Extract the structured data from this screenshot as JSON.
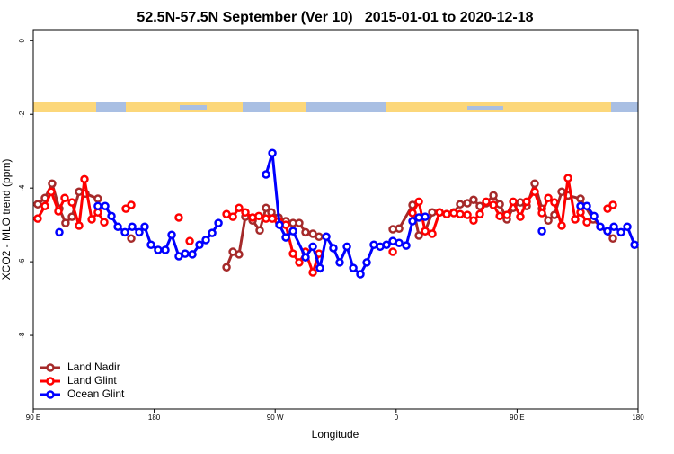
{
  "chart_data": {
    "type": "line",
    "title": "52.5N-57.5N September (Ver 10)   2015-01-01 to 2020-12-18",
    "x_label": "Longitude",
    "y_label": "XCO2 - MLO trend (ppm)",
    "xlim": [
      90,
      540
    ],
    "ylim": [
      -10,
      0.3
    ],
    "xticks": [
      {
        "value": 90,
        "label": "90 E"
      },
      180,
      {
        "value": 270,
        "label": "90 W"
      },
      {
        "value": 360,
        "label": "0"
      },
      {
        "value": 450,
        "label": "90 E"
      },
      {
        "value": 540,
        "label": "180"
      }
    ],
    "yticks": [
      0,
      -2,
      -4,
      -6,
      -8
    ],
    "legend": "bottom-left",
    "series": [
      {
        "name": "Land Nadir",
        "color": "#a52a2a",
        "x": [
          93.3,
          98.7,
          104,
          109.4,
          114,
          118.8,
          124.1,
          128.8,
          138.1,
          150,
          162.9,
          200,
          233.8,
          238.5,
          243.1,
          247.8,
          253.2,
          258.5,
          263.2,
          267.2,
          272.6,
          277.9,
          283.3,
          287.9,
          292.6,
          298,
          302.6,
          330,
          357.5,
          362.2,
          372.2,
          376.9,
          381.6,
          386.9,
          392.3,
          397.6,
          402.9,
          407.6,
          413,
          417.6,
          422.3,
          427,
          432.4,
          437.1,
          442.4,
          447.1,
          452.4,
          457.1,
          463.1,
          468.5,
          473.2,
          477.8,
          483.2,
          487.9,
          497.2,
          506.6,
          521.3
        ],
        "values": [
          -4.44,
          -4.27,
          -3.88,
          -4.56,
          -4.95,
          -4.78,
          -4.1,
          -4.15,
          -4.29,
          null,
          -5.37,
          null,
          -6.15,
          -5.73,
          -5.8,
          -4.78,
          -4.88,
          -5.15,
          -4.54,
          -4.66,
          -4.8,
          -4.9,
          -4.95,
          -4.95,
          -5.2,
          -5.24,
          -5.32,
          null,
          -5.12,
          -5.1,
          -4.46,
          -5.29,
          -5.17,
          -4.66,
          -4.66,
          -4.71,
          -4.66,
          -4.44,
          -4.41,
          -4.32,
          -4.49,
          -4.41,
          -4.2,
          -4.44,
          -4.85,
          -4.54,
          -4.39,
          -4.49,
          -3.88,
          -4.56,
          -4.88,
          -4.73,
          -4.1,
          -4.2,
          -4.29,
          -4.85,
          -5.37
        ]
      },
      {
        "name": "Land Glint",
        "color": "#ff0000",
        "x": [
          93.3,
          98.7,
          103.4,
          108.7,
          113.4,
          118.8,
          124.1,
          128.1,
          133.5,
          138.1,
          142.8,
          150,
          158.9,
          162.9,
          180,
          198.3,
          202,
          206.4,
          220,
          233.8,
          238.5,
          243.1,
          247.8,
          253.2,
          257.8,
          263.2,
          267.9,
          272.6,
          277.9,
          283.3,
          287.9,
          292.6,
          298,
          302.6,
          330,
          357.5,
          365,
          372.2,
          376.9,
          381.6,
          386.9,
          392.3,
          397.6,
          402.9,
          407.6,
          413,
          417.6,
          422.3,
          427,
          432.4,
          437.1,
          442.4,
          447.1,
          452.4,
          457.1,
          463.1,
          468.5,
          473.2,
          477.8,
          483.2,
          487.9,
          493.2,
          497.2,
          501.9,
          510,
          517.3,
          521.3
        ],
        "values": [
          -4.83,
          -4.49,
          -4.1,
          -4.63,
          -4.27,
          -4.39,
          -5.02,
          -3.76,
          -4.85,
          -4.66,
          -4.93,
          null,
          -4.56,
          -4.46,
          null,
          -4.8,
          null,
          -5.44,
          null,
          -4.71,
          -4.78,
          -4.54,
          -4.66,
          -4.8,
          -4.76,
          -4.83,
          -4.83,
          -4.9,
          -5.0,
          -5.78,
          -6.02,
          -5.73,
          -6.29,
          -5.78,
          null,
          -5.73,
          null,
          -4.68,
          -4.37,
          -5.17,
          -5.24,
          -4.66,
          -4.71,
          -4.68,
          -4.71,
          -4.73,
          -4.88,
          -4.71,
          -4.37,
          -4.46,
          -4.76,
          -4.73,
          -4.37,
          -4.78,
          -4.37,
          -4.1,
          -4.68,
          -4.27,
          -4.39,
          -5.02,
          -3.73,
          -4.85,
          -4.66,
          -4.93,
          null,
          -4.56,
          -4.46
        ]
      },
      {
        "name": "Ocean Glint",
        "color": "#0000ff",
        "x": [
          109.4,
          125,
          138.1,
          143.5,
          148.2,
          152.9,
          158.2,
          163.6,
          168.9,
          172.9,
          177.6,
          182.9,
          188.3,
          193,
          198.3,
          203,
          208.4,
          213.7,
          218.4,
          223.1,
          227.8,
          245,
          263.2,
          267.9,
          273.2,
          277.9,
          283.3,
          292.6,
          298,
          303.3,
          308,
          313.3,
          318,
          323.4,
          328.1,
          333.4,
          338.1,
          343.4,
          348.1,
          352.8,
          357.5,
          362.2,
          367.5,
          372.2,
          376.9,
          381.6,
          420,
          468.5,
          485,
          497.2,
          501.9,
          507.3,
          511.9,
          517.3,
          522,
          527.3,
          532,
          537.4
        ],
        "values": [
          -5.2,
          null,
          -4.49,
          -4.49,
          -4.76,
          -5.05,
          -5.2,
          -5.05,
          -5.2,
          -5.05,
          -5.54,
          -5.68,
          -5.68,
          -5.27,
          -5.85,
          -5.78,
          -5.8,
          -5.54,
          -5.41,
          -5.22,
          -4.95,
          null,
          -3.63,
          -3.05,
          -5.0,
          -5.34,
          -5.17,
          -5.88,
          -5.59,
          -6.17,
          -5.32,
          -5.63,
          -6.02,
          -5.59,
          -6.17,
          -6.34,
          -6.02,
          -5.54,
          -5.59,
          -5.54,
          -5.44,
          -5.49,
          -5.56,
          -4.9,
          -4.8,
          -4.78,
          null,
          -5.17,
          null,
          -4.49,
          -4.49,
          -4.76,
          -5.05,
          -5.17,
          -5.05,
          -5.2,
          -5.05,
          -5.54
        ]
      }
    ]
  }
}
